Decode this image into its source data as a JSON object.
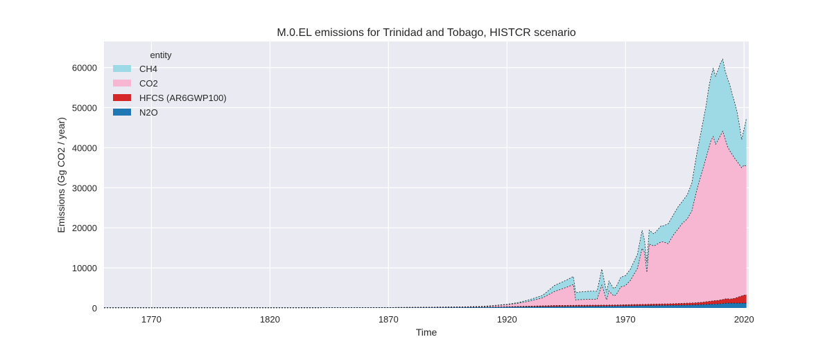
{
  "chart_data": {
    "type": "area",
    "stacked": true,
    "title": "M.0.EL emissions for Trinidad and Tobago, HISTCR scenario",
    "xlabel": "Time",
    "ylabel": "Emissions (Gg CO2 / year)",
    "xlim": [
      1750,
      2022
    ],
    "ylim": [
      0,
      66500
    ],
    "x_ticks": [
      1770,
      1820,
      1870,
      1920,
      1970,
      2020
    ],
    "y_ticks": [
      0,
      10000,
      20000,
      30000,
      40000,
      50000,
      60000
    ],
    "grid": true,
    "legend": {
      "title": "entity",
      "position": "top-left"
    },
    "x": [
      1750,
      1800,
      1850,
      1870,
      1890,
      1900,
      1910,
      1920,
      1925,
      1930,
      1935,
      1940,
      1945,
      1948,
      1949,
      1950,
      1955,
      1958,
      1960,
      1962,
      1963,
      1965,
      1966,
      1968,
      1970,
      1972,
      1975,
      1977,
      1978,
      1979,
      1980,
      1982,
      1985,
      1986,
      1988,
      1990,
      1992,
      1994,
      1996,
      1998,
      2000,
      2002,
      2003,
      2004,
      2005,
      2006,
      2007,
      2008,
      2009,
      2010,
      2011,
      2012,
      2013,
      2014,
      2015,
      2016,
      2017,
      2018,
      2019,
      2020,
      2021
    ],
    "series": [
      {
        "name": "N2O",
        "color": "#1f77b4",
        "values": [
          50,
          50,
          60,
          80,
          120,
          150,
          200,
          250,
          280,
          300,
          320,
          350,
          380,
          400,
          400,
          410,
          430,
          440,
          450,
          460,
          470,
          480,
          490,
          500,
          510,
          530,
          560,
          580,
          590,
          600,
          610,
          620,
          640,
          650,
          660,
          680,
          700,
          720,
          740,
          760,
          800,
          850,
          870,
          900,
          920,
          950,
          980,
          1000,
          1000,
          1050,
          1100,
          1150,
          1200,
          1200,
          1200,
          1200,
          1200,
          1200,
          1200,
          1200,
          1200
        ]
      },
      {
        "name": "HFCS (AR6GWP100)",
        "color": "#d62728",
        "values": [
          0,
          0,
          0,
          0,
          0,
          0,
          0,
          50,
          100,
          150,
          200,
          250,
          250,
          250,
          250,
          250,
          250,
          250,
          250,
          250,
          250,
          250,
          250,
          250,
          280,
          300,
          300,
          300,
          300,
          300,
          320,
          330,
          350,
          350,
          360,
          380,
          400,
          420,
          450,
          480,
          500,
          550,
          600,
          650,
          700,
          750,
          800,
          850,
          850,
          950,
          1000,
          1100,
          1100,
          1000,
          1100,
          1200,
          1400,
          1600,
          1800,
          2000,
          2100
        ]
      },
      {
        "name": "CO2",
        "color": "#f7b6d2",
        "values": [
          0,
          0,
          0,
          20,
          80,
          100,
          150,
          500,
          800,
          1300,
          2000,
          3500,
          4500,
          5200,
          1300,
          1400,
          1500,
          1500,
          5000,
          1300,
          3500,
          2300,
          2500,
          4500,
          4800,
          6000,
          9000,
          14000,
          13000,
          8000,
          15000,
          14500,
          15500,
          15500,
          15000,
          17000,
          18500,
          20000,
          21000,
          23000,
          28000,
          32000,
          34000,
          36000,
          38000,
          40000,
          41000,
          39000,
          40000,
          41000,
          42000,
          40000,
          38000,
          37000,
          36000,
          35000,
          34000,
          33000,
          32000,
          32500,
          32000
        ]
      },
      {
        "name": "CH4",
        "color": "#9edae5",
        "values": [
          0,
          0,
          0,
          0,
          0,
          0,
          50,
          100,
          200,
          400,
          600,
          1500,
          1800,
          2000,
          1800,
          1900,
          2000,
          2000,
          4000,
          1900,
          2500,
          1800,
          2000,
          2400,
          2500,
          2800,
          3500,
          4500,
          3000,
          2500,
          3500,
          3000,
          4000,
          4000,
          5000,
          5000,
          5500,
          5500,
          6000,
          7000,
          9000,
          11000,
          12000,
          13000,
          15000,
          16000,
          17000,
          17000,
          17500,
          18000,
          18000,
          17000,
          17000,
          16500,
          15000,
          14000,
          12500,
          10000,
          7000,
          9000,
          12000
        ]
      }
    ]
  }
}
